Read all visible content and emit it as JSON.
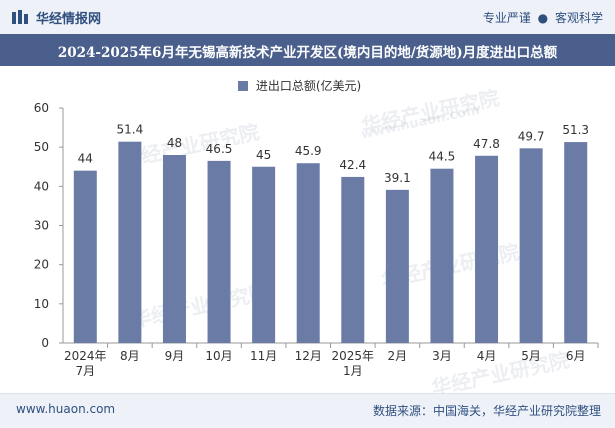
{
  "header": {
    "brand": "华经情报网",
    "tagline_left": "专业严谨",
    "tagline_sep": "●",
    "tagline_right": "客观科学"
  },
  "footer": {
    "website": "www.huaon.com",
    "source": "数据来源：中国海关，华经产业研究院整理"
  },
  "watermark": {
    "text": "华经产业研究院",
    "url": "www.huaon.com"
  },
  "colors": {
    "bar": "#6a7ba6",
    "title_bg": "#4a5f8b",
    "bar_bg": "#eef2f8"
  },
  "chart_data": {
    "type": "bar",
    "title": "2024-2025年6月年无锡高新技术产业开发区(境内目的地/货源地)月度进出口总额",
    "legend": "进出口总额(亿美元)",
    "legend_position": "top-center",
    "categories": [
      "2024年\n7月",
      "8月",
      "9月",
      "10月",
      "11月",
      "12月",
      "2025年\n1月",
      "2月",
      "3月",
      "4月",
      "5月",
      "6月"
    ],
    "series": [
      {
        "name": "进出口总额(亿美元)",
        "values": [
          44,
          51.4,
          48,
          46.5,
          45,
          45.9,
          42.4,
          39.1,
          44.5,
          47.8,
          49.7,
          51.3
        ]
      }
    ],
    "ylim": [
      0,
      60
    ],
    "yticks": [
      0,
      10,
      20,
      30,
      40,
      50,
      60
    ],
    "grid": false
  }
}
